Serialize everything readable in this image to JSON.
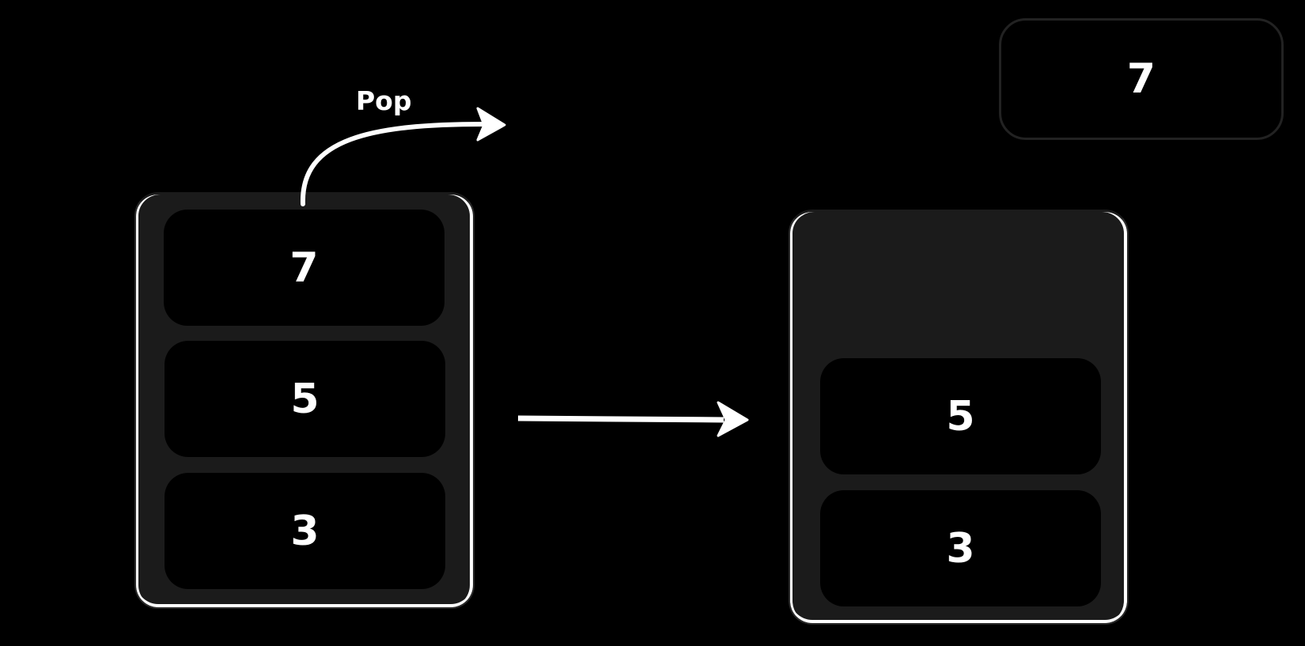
{
  "pop_label": "Pop",
  "output": {
    "value": "7"
  },
  "stack_before": {
    "items": [
      "7",
      "5",
      "3"
    ]
  },
  "stack_after": {
    "items": [
      "5",
      "3"
    ]
  },
  "colors": {
    "background": "#000000",
    "stack_fill": "#1b1b1b",
    "slot_fill": "#000000",
    "stroke": "#ffffff"
  }
}
